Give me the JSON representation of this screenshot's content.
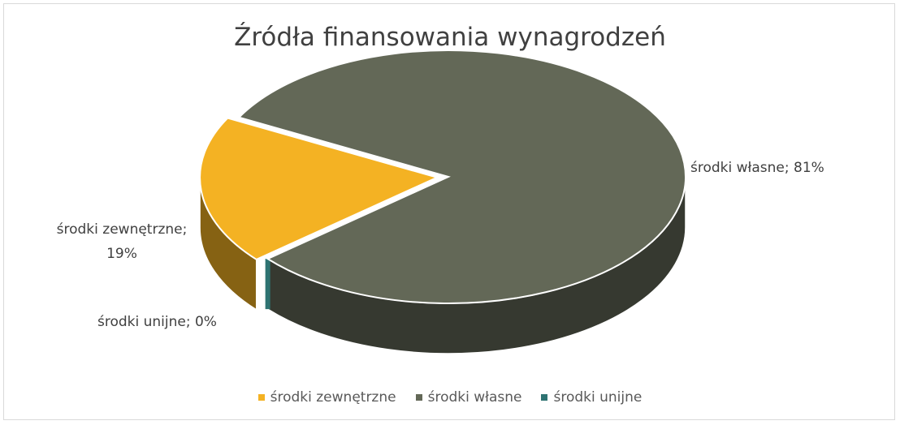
{
  "chart_data": {
    "type": "pie3d",
    "title": "Źródła finansowania wynagrodzeń",
    "categories": [
      "środki zewnętrzne",
      "środki własne",
      "środki unijne"
    ],
    "values": [
      19,
      81,
      0
    ],
    "value_labels": [
      "środki zewnętrzne; 19%",
      "środki własne; 81%",
      "środki unijne; 0%"
    ],
    "colors": [
      "#f4b223",
      "#636857",
      "#2e7372"
    ],
    "legend": "bottom"
  }
}
